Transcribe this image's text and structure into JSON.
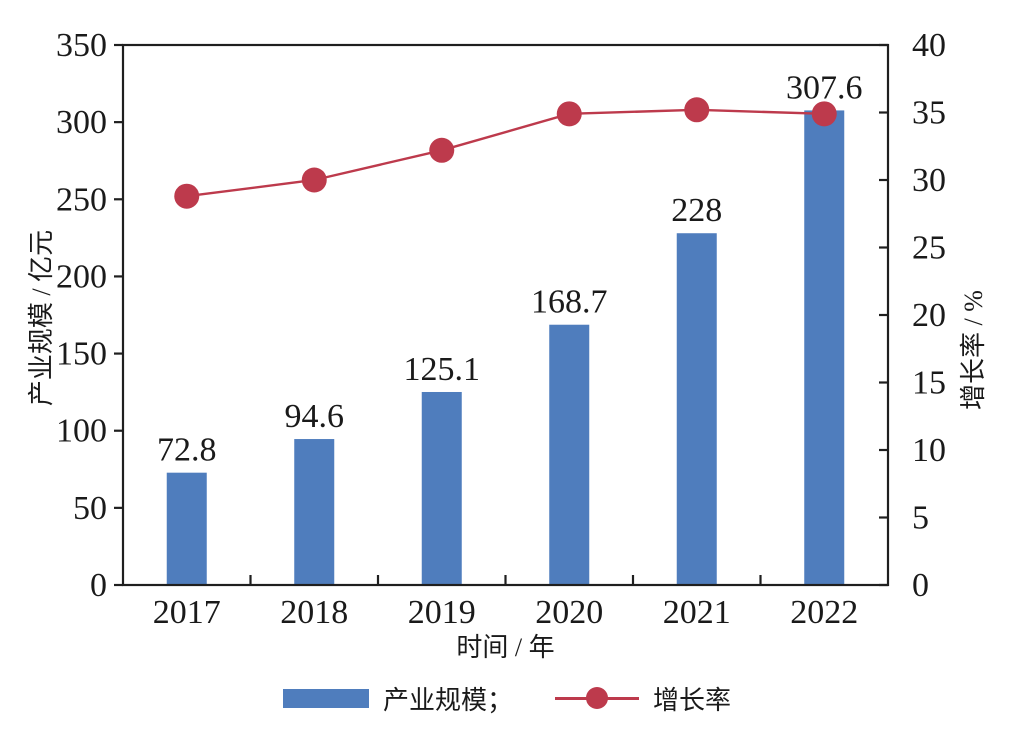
{
  "chart_data": {
    "type": "bar+line",
    "categories": [
      "2017",
      "2018",
      "2019",
      "2020",
      "2021",
      "2022"
    ],
    "series": [
      {
        "name": "产业规模",
        "type": "bar",
        "axis": "left",
        "values": [
          72.8,
          94.6,
          125.1,
          168.7,
          228,
          307.6
        ],
        "labels": [
          "72.8",
          "94.6",
          "125.1",
          "168.7",
          "228",
          "307.6"
        ],
        "color": "#4f7dbd"
      },
      {
        "name": "增长率",
        "type": "line",
        "axis": "right",
        "values": [
          28.8,
          30.0,
          32.2,
          34.9,
          35.2,
          34.9
        ],
        "color": "#bd3a4c"
      }
    ],
    "left_axis": {
      "title": "产业规模 / 亿元",
      "min": 0,
      "max": 350,
      "step": 50
    },
    "right_axis": {
      "title": "增长率 / %",
      "min": 0,
      "max": 40,
      "step": 5
    },
    "x_axis": {
      "title": "时间 / 年"
    },
    "legend": [
      {
        "label": "产业规模；",
        "type": "bar"
      },
      {
        "label": "增长率",
        "type": "line"
      }
    ],
    "grid": false,
    "legend_position": "bottom",
    "colors": {
      "axis": "#1f1f1f",
      "text": "#1a1a1a"
    }
  }
}
